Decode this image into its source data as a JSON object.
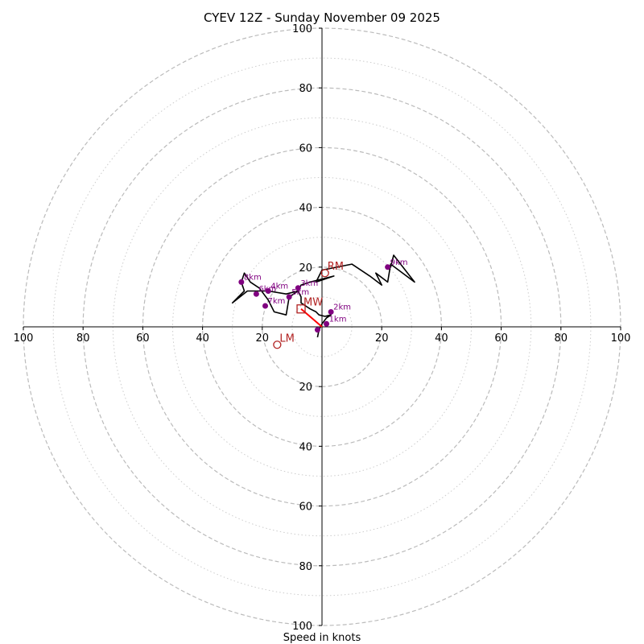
{
  "chart_data": {
    "type": "hodograph",
    "title": "CYEV 12Z - Sunday November 09 2025",
    "xlabel": "Speed in knots",
    "rings_major": [
      20,
      40,
      60,
      80,
      100
    ],
    "rings_minor": [
      10,
      30,
      50,
      70,
      90
    ],
    "tick_values": [
      20,
      40,
      60,
      80,
      100
    ],
    "range": [
      -100,
      100
    ],
    "grid": true,
    "colors": {
      "trace": "#000000",
      "height_points": "#800080",
      "storm_markers": "#b22222",
      "shear_vector": "#ff0000",
      "major_ring": "#bbbbbb",
      "minor_ring": "#cccccc"
    },
    "trace": [
      [
        -1.5,
        -3.5
      ],
      [
        -1,
        -1
      ],
      [
        0,
        1
      ],
      [
        1.5,
        3
      ],
      [
        3,
        4
      ],
      [
        1,
        3.5
      ],
      [
        -1,
        4
      ],
      [
        -2,
        5
      ],
      [
        -4,
        6
      ],
      [
        -7,
        8
      ],
      [
        -7,
        10
      ],
      [
        -8,
        12
      ],
      [
        -7,
        14
      ],
      [
        -4,
        15
      ],
      [
        0,
        16
      ],
      [
        4,
        17
      ],
      [
        -2,
        15
      ],
      [
        0,
        19
      ],
      [
        10,
        21
      ],
      [
        16,
        17
      ],
      [
        20,
        14
      ],
      [
        18,
        18
      ],
      [
        22,
        15
      ],
      [
        23,
        21
      ],
      [
        31,
        15
      ],
      [
        24,
        24
      ],
      [
        23,
        20
      ],
      [
        22,
        20
      ]
    ],
    "trace_low": [
      [
        -8,
        12
      ],
      [
        -12,
        11
      ],
      [
        -18,
        12
      ],
      [
        -25,
        12
      ],
      [
        -30,
        8
      ],
      [
        -26,
        12
      ],
      [
        -27,
        15
      ],
      [
        -26,
        18
      ],
      [
        -24,
        15
      ],
      [
        -21,
        13
      ],
      [
        -18,
        9
      ],
      [
        -16,
        5
      ],
      [
        -12,
        4
      ],
      [
        -11,
        10
      ],
      [
        -8,
        12
      ]
    ],
    "height_points": [
      {
        "label": "1km",
        "x": 1.5,
        "y": 1
      },
      {
        "label": "2km",
        "x": 3,
        "y": 5
      },
      {
        "label": "3km",
        "x": -8,
        "y": 13
      },
      {
        "label": "4km",
        "x": -18,
        "y": 12
      },
      {
        "label": "5km",
        "x": -11,
        "y": 10
      },
      {
        "label": "6km",
        "x": -22,
        "y": 11
      },
      {
        "label": "7km",
        "x": -19,
        "y": 7
      },
      {
        "label": "8km",
        "x": -27,
        "y": 15
      },
      {
        "label": "9km",
        "x": 22,
        "y": 20
      },
      {
        "label": "",
        "x": -1.5,
        "y": -1
      }
    ],
    "storm_markers": [
      {
        "label": "RM",
        "x": 1,
        "y": 18,
        "shape": "circle"
      },
      {
        "label": "MW",
        "x": -7,
        "y": 6,
        "shape": "square"
      },
      {
        "label": "LM",
        "x": -15,
        "y": -6,
        "shape": "circle"
      }
    ],
    "shear_vector": {
      "from": [
        -7,
        6
      ],
      "to": [
        0,
        0
      ]
    }
  }
}
